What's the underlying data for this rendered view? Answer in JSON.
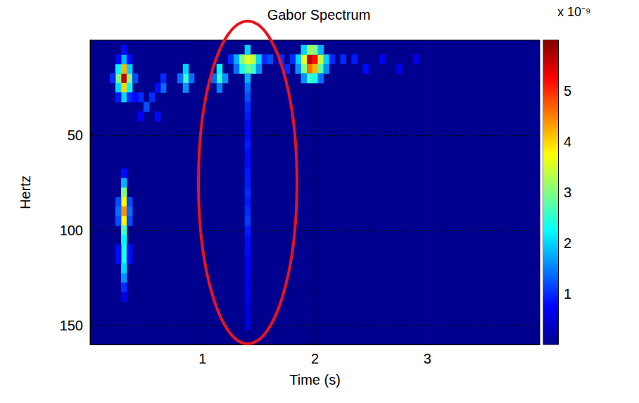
{
  "chart_data": {
    "type": "heatmap",
    "title": "Gabor Spectrum",
    "x_label": "Time (s)",
    "y_label": "Hertz",
    "xlim": [
      0,
      4
    ],
    "ylim": [
      160,
      0
    ],
    "xticks": [
      1,
      2,
      3
    ],
    "yticks": [
      50,
      100,
      150
    ],
    "grid": true,
    "cell_size": [
      0.05,
      5
    ],
    "cells": [
      [
        0.3,
        20,
        5.6
      ],
      [
        0.3,
        15,
        4.2
      ],
      [
        0.3,
        25,
        4.0
      ],
      [
        0.25,
        20,
        3.0
      ],
      [
        0.35,
        20,
        3.0
      ],
      [
        0.3,
        10,
        1.8
      ],
      [
        0.3,
        30,
        2.0
      ],
      [
        0.25,
        15,
        2.2
      ],
      [
        0.35,
        15,
        2.0
      ],
      [
        0.25,
        25,
        2.0
      ],
      [
        0.35,
        25,
        2.2
      ],
      [
        0.2,
        20,
        1.0
      ],
      [
        0.4,
        20,
        1.2
      ],
      [
        0.3,
        5,
        0.8
      ],
      [
        0.25,
        10,
        0.8
      ],
      [
        0.35,
        10,
        0.8
      ],
      [
        0.25,
        30,
        0.9
      ],
      [
        0.35,
        30,
        1.0
      ],
      [
        0.3,
        70,
        0.8
      ],
      [
        0.3,
        75,
        1.8
      ],
      [
        0.3,
        80,
        3.0
      ],
      [
        0.3,
        85,
        3.8
      ],
      [
        0.3,
        90,
        4.4
      ],
      [
        0.3,
        95,
        3.8
      ],
      [
        0.3,
        100,
        2.6
      ],
      [
        0.3,
        105,
        2.2
      ],
      [
        0.3,
        110,
        2.4
      ],
      [
        0.3,
        115,
        2.4
      ],
      [
        0.3,
        120,
        2.0
      ],
      [
        0.3,
        125,
        1.6
      ],
      [
        0.3,
        130,
        1.0
      ],
      [
        0.3,
        135,
        0.6
      ],
      [
        0.25,
        85,
        1.2
      ],
      [
        0.35,
        85,
        1.2
      ],
      [
        0.25,
        90,
        1.4
      ],
      [
        0.35,
        90,
        1.4
      ],
      [
        0.25,
        95,
        1.2
      ],
      [
        0.35,
        95,
        1.2
      ],
      [
        0.25,
        110,
        0.8
      ],
      [
        0.35,
        110,
        0.8
      ],
      [
        0.25,
        115,
        0.8
      ],
      [
        0.35,
        115,
        0.8
      ],
      [
        0.45,
        30,
        1.0
      ],
      [
        0.5,
        35,
        1.2
      ],
      [
        0.55,
        30,
        1.0
      ],
      [
        0.6,
        40,
        0.8
      ],
      [
        0.45,
        40,
        0.7
      ],
      [
        0.4,
        30,
        0.8
      ],
      [
        0.65,
        25,
        1.4
      ],
      [
        0.65,
        20,
        1.0
      ],
      [
        0.6,
        25,
        0.8
      ],
      [
        0.85,
        20,
        2.6
      ],
      [
        0.85,
        15,
        2.0
      ],
      [
        0.85,
        25,
        1.6
      ],
      [
        0.8,
        20,
        1.4
      ],
      [
        0.9,
        20,
        1.4
      ],
      [
        1.15,
        20,
        2.6
      ],
      [
        1.15,
        15,
        2.2
      ],
      [
        1.15,
        25,
        1.5
      ],
      [
        1.1,
        20,
        1.4
      ],
      [
        1.2,
        20,
        1.6
      ],
      [
        1.35,
        10,
        3.0
      ],
      [
        1.4,
        10,
        3.6
      ],
      [
        1.45,
        10,
        3.4
      ],
      [
        1.4,
        15,
        3.0
      ],
      [
        1.35,
        15,
        2.4
      ],
      [
        1.45,
        15,
        2.6
      ],
      [
        1.4,
        5,
        2.0
      ],
      [
        1.3,
        10,
        1.8
      ],
      [
        1.5,
        10,
        2.0
      ],
      [
        1.4,
        20,
        1.8
      ],
      [
        1.3,
        15,
        1.4
      ],
      [
        1.5,
        15,
        1.6
      ],
      [
        1.55,
        10,
        1.0
      ],
      [
        1.25,
        10,
        1.0
      ],
      [
        1.4,
        25,
        1.4
      ],
      [
        1.4,
        30,
        1.2
      ],
      [
        1.4,
        35,
        1.0
      ],
      [
        1.4,
        40,
        0.9
      ],
      [
        1.4,
        45,
        0.8
      ],
      [
        1.4,
        50,
        0.8
      ],
      [
        1.4,
        55,
        0.9
      ],
      [
        1.4,
        60,
        0.8
      ],
      [
        1.4,
        65,
        0.8
      ],
      [
        1.4,
        70,
        0.9
      ],
      [
        1.4,
        75,
        0.9
      ],
      [
        1.4,
        80,
        1.0
      ],
      [
        1.4,
        85,
        0.9
      ],
      [
        1.4,
        90,
        1.0
      ],
      [
        1.4,
        95,
        1.1
      ],
      [
        1.4,
        100,
        0.9
      ],
      [
        1.4,
        105,
        0.8
      ],
      [
        1.4,
        110,
        0.8
      ],
      [
        1.4,
        115,
        0.7
      ],
      [
        1.4,
        120,
        0.7
      ],
      [
        1.4,
        125,
        0.6
      ],
      [
        1.4,
        130,
        0.6
      ],
      [
        1.4,
        135,
        0.6
      ],
      [
        1.4,
        140,
        0.5
      ],
      [
        1.4,
        145,
        0.5
      ],
      [
        1.4,
        150,
        0.5
      ],
      [
        1.6,
        10,
        1.2
      ],
      [
        1.7,
        10,
        1.0
      ],
      [
        1.75,
        15,
        1.0
      ],
      [
        1.95,
        10,
        5.6
      ],
      [
        2.0,
        10,
        5.2
      ],
      [
        1.95,
        15,
        4.6
      ],
      [
        2.0,
        15,
        4.2
      ],
      [
        1.9,
        10,
        3.6
      ],
      [
        2.05,
        10,
        3.4
      ],
      [
        1.9,
        15,
        3.0
      ],
      [
        2.05,
        15,
        2.8
      ],
      [
        1.95,
        5,
        3.2
      ],
      [
        2.0,
        5,
        3.0
      ],
      [
        1.95,
        20,
        2.6
      ],
      [
        2.0,
        20,
        2.4
      ],
      [
        1.85,
        10,
        2.0
      ],
      [
        2.1,
        10,
        2.0
      ],
      [
        1.85,
        15,
        1.6
      ],
      [
        2.1,
        15,
        1.6
      ],
      [
        1.8,
        10,
        1.0
      ],
      [
        2.15,
        10,
        1.0
      ],
      [
        1.9,
        20,
        1.6
      ],
      [
        2.05,
        20,
        1.4
      ],
      [
        1.9,
        5,
        2.0
      ],
      [
        2.05,
        5,
        1.8
      ],
      [
        2.25,
        10,
        1.0
      ],
      [
        2.35,
        10,
        0.9
      ],
      [
        2.45,
        15,
        0.8
      ],
      [
        2.6,
        10,
        0.7
      ],
      [
        2.75,
        15,
        0.6
      ],
      [
        2.9,
        10,
        0.6
      ]
    ],
    "colorbar": {
      "range": [
        0,
        6
      ],
      "ticks": [
        1,
        2,
        3,
        4,
        5
      ],
      "label": "x 10⁻⁹",
      "colors": [
        "#00008f",
        "#0000ff",
        "#0080ff",
        "#00ffff",
        "#80ff80",
        "#ffff00",
        "#ff8000",
        "#ff0000",
        "#800000"
      ]
    }
  }
}
